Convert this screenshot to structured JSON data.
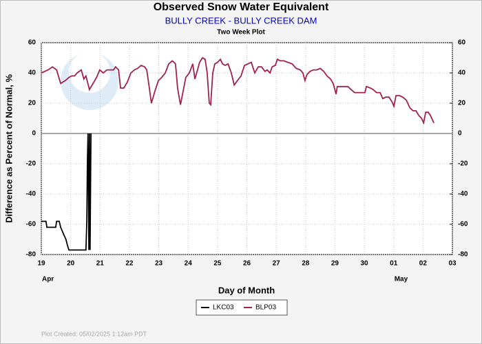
{
  "chart_data": {
    "type": "line",
    "title": "Observed Snow Water Equivalent",
    "subtitle": "BULLY CREEK - BULLY CREEK DAM",
    "subtitle_color": "#0000cc",
    "note": "Two Week Plot",
    "xlabel": "Day of Month",
    "ylabel": "Difference as Percent of Normal, %",
    "footer": "Plot Created: 05/02/2025 1:12am PDT",
    "xlim": [
      0,
      14
    ],
    "xticks": [
      {
        "value": 0,
        "label": "19"
      },
      {
        "value": 1,
        "label": "20"
      },
      {
        "value": 2,
        "label": "21"
      },
      {
        "value": 3,
        "label": "22"
      },
      {
        "value": 4,
        "label": "23"
      },
      {
        "value": 5,
        "label": "24"
      },
      {
        "value": 6,
        "label": "25"
      },
      {
        "value": 7,
        "label": "26"
      },
      {
        "value": 8,
        "label": "27"
      },
      {
        "value": 9,
        "label": "28"
      },
      {
        "value": 10,
        "label": "29"
      },
      {
        "value": 11,
        "label": "30"
      },
      {
        "value": 12,
        "label": "01"
      },
      {
        "value": 13,
        "label": "02"
      },
      {
        "value": 14,
        "label": "03"
      }
    ],
    "month_labels": [
      {
        "value": 0,
        "label": "Apr"
      },
      {
        "value": 12,
        "label": "May"
      }
    ],
    "ylim": [
      -80,
      60
    ],
    "yticks": [
      -80,
      -60,
      -40,
      -20,
      0,
      20,
      40,
      60
    ],
    "y2lim": [
      -80,
      60
    ],
    "y2ticks": [
      -80,
      -60,
      -40,
      -20,
      0,
      20,
      40,
      60
    ],
    "hline": 0,
    "grid": true,
    "series": [
      {
        "name": "LKC03",
        "color": "#000000",
        "x": [
          0,
          0.16,
          0.19,
          0.49,
          0.52,
          0.61,
          0.66,
          0.77,
          0.84,
          0.89,
          0.94,
          1.52,
          1.55,
          1.57,
          1.59,
          1.62,
          1.64,
          1.66,
          1.69
        ],
        "values": [
          -58,
          -58,
          -62,
          -62,
          -58,
          -58,
          -62,
          -67,
          -70,
          -74,
          -77,
          -77,
          -58,
          -20,
          0,
          -77,
          0,
          -77,
          0
        ]
      },
      {
        "name": "BLP03",
        "color": "#a0204a",
        "x": [
          0,
          0.23,
          0.38,
          0.52,
          0.66,
          0.82,
          0.94,
          1.03,
          1.13,
          1.22,
          1.36,
          1.45,
          1.52,
          1.64,
          1.76,
          1.88,
          1.99,
          2.11,
          2.23,
          2.35,
          2.46,
          2.53,
          2.63,
          2.7,
          2.81,
          2.93,
          3.05,
          3.17,
          3.28,
          3.4,
          3.52,
          3.59,
          3.68,
          3.75,
          3.87,
          3.99,
          4.1,
          4.22,
          4.34,
          4.46,
          4.57,
          4.64,
          4.74,
          4.83,
          4.92,
          5.04,
          5.16,
          5.23,
          5.32,
          5.39,
          5.49,
          5.58,
          5.65,
          5.72,
          5.77,
          5.84,
          5.91,
          6.0,
          6.1,
          6.17,
          6.26,
          6.36,
          6.47,
          6.57,
          6.68,
          6.8,
          6.92,
          7.04,
          7.15,
          7.27,
          7.39,
          7.5,
          7.62,
          7.69,
          7.79,
          7.86,
          7.97,
          8.04,
          8.14,
          8.26,
          8.4,
          8.54,
          8.68,
          8.82,
          8.91,
          8.98,
          9.05,
          9.15,
          9.26,
          9.38,
          9.5,
          9.62,
          9.73,
          9.85,
          9.94,
          10.04,
          10.08,
          10.2,
          10.32,
          10.44,
          10.55,
          10.67,
          10.79,
          10.91,
          11.02,
          11.07,
          11.21,
          11.3,
          11.42,
          11.54,
          11.63,
          11.73,
          11.84,
          11.94,
          12.01,
          12.08,
          12.2,
          12.31,
          12.43,
          12.55,
          12.66,
          12.76,
          12.85,
          12.95,
          13.02,
          13.09,
          13.18,
          13.25,
          13.37
        ],
        "values": [
          40,
          42,
          44,
          42,
          33,
          35,
          37,
          38,
          38,
          40,
          42,
          36,
          38,
          29,
          33,
          37,
          42,
          40,
          42,
          42,
          42,
          44,
          42,
          30,
          30,
          34,
          40,
          42,
          43,
          45,
          44,
          42,
          30,
          20,
          28,
          35,
          37,
          40,
          46,
          48,
          46,
          30,
          19,
          28,
          37,
          40,
          46,
          36,
          42,
          47,
          50,
          49,
          40,
          20,
          19,
          40,
          46,
          47,
          49,
          46,
          45,
          46,
          40,
          32,
          35,
          38,
          45,
          46,
          47,
          40,
          44,
          44,
          41,
          42,
          40,
          44,
          45,
          49,
          48,
          48,
          47,
          46,
          43,
          42,
          40,
          35,
          39,
          41,
          42,
          42,
          43,
          41,
          38,
          36,
          33,
          26,
          31,
          31,
          31,
          31,
          29,
          27,
          27,
          27,
          27,
          31,
          30,
          29,
          27,
          27,
          23,
          24,
          24,
          21,
          18,
          25,
          25,
          24,
          22,
          17,
          15,
          15,
          12,
          10,
          7,
          14,
          14,
          12,
          7
        ]
      }
    ]
  }
}
